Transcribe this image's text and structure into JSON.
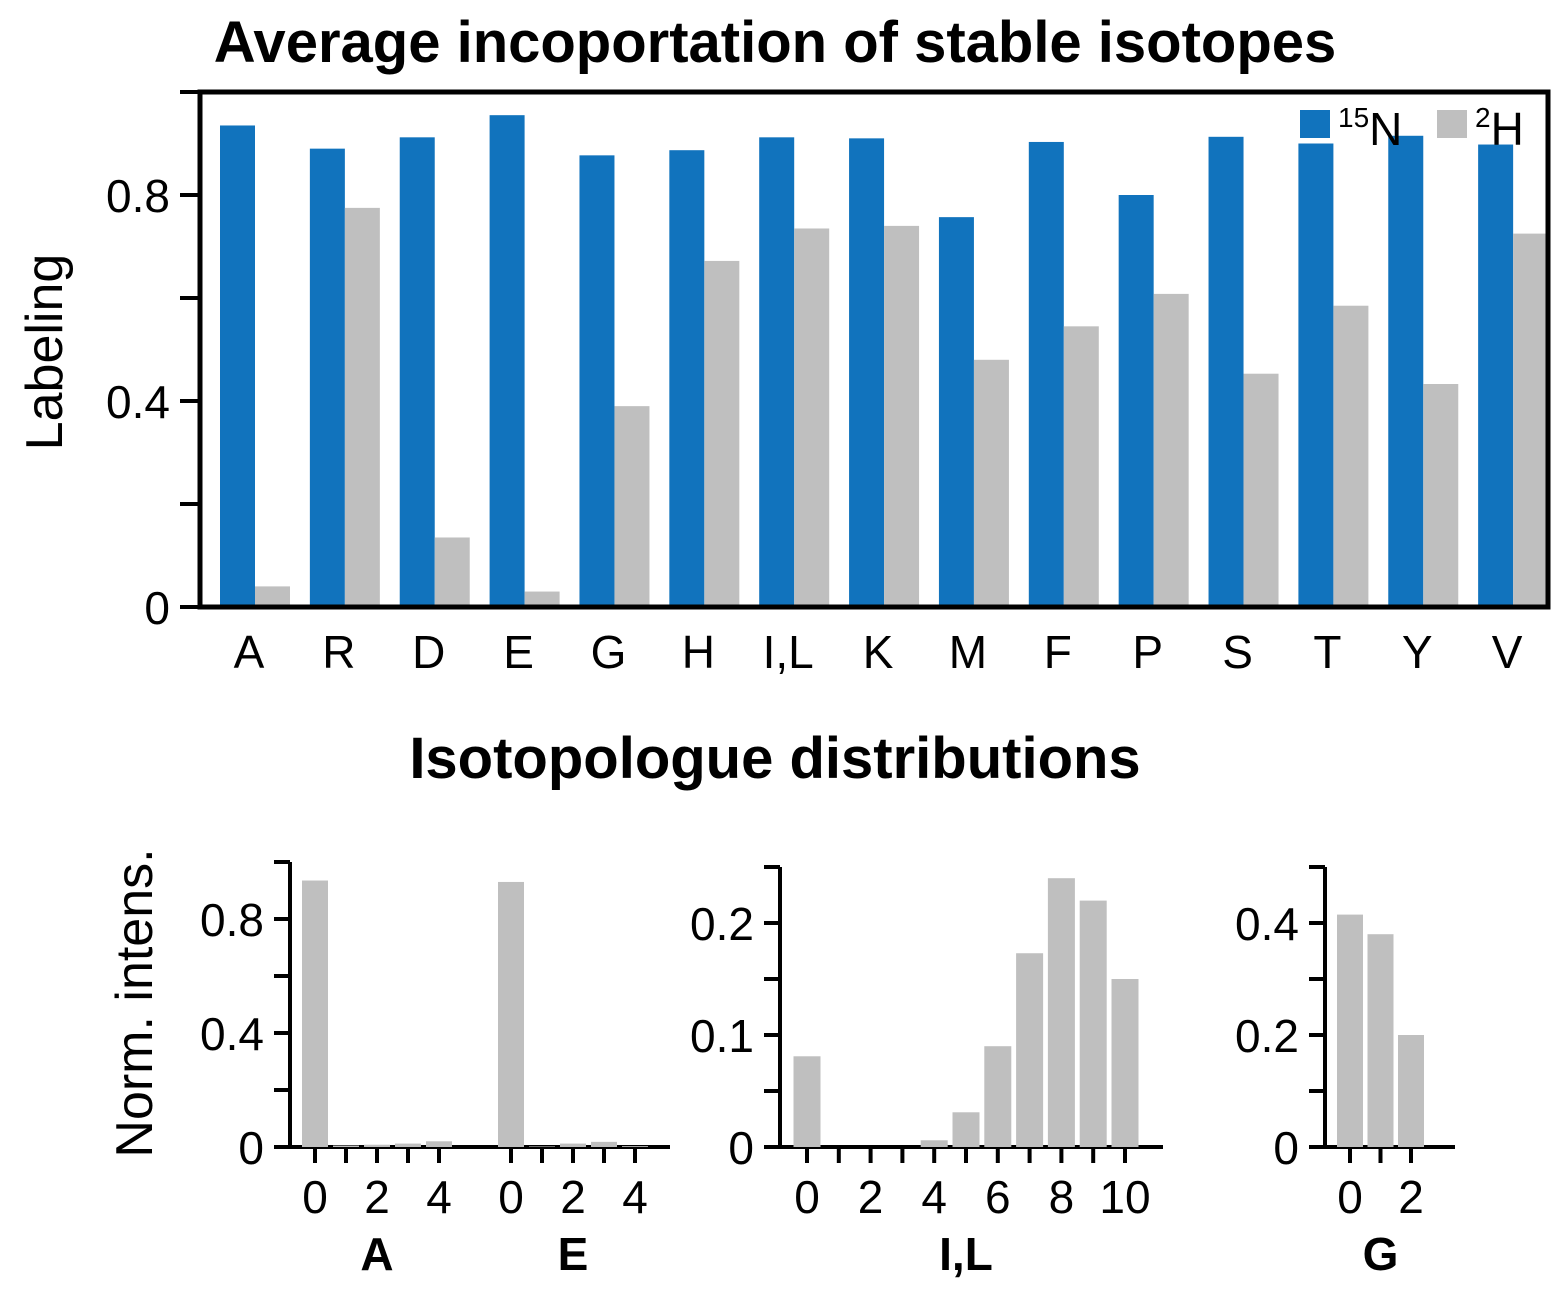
{
  "chart_data": [
    {
      "type": "bar",
      "title": "Average incoportation of stable isotopes",
      "ylabel": "Labeling",
      "ylim": [
        0,
        1.0
      ],
      "yticks": [
        0,
        0.4,
        0.8
      ],
      "yticks_minor": [
        0.2,
        0.6,
        1.0
      ],
      "grid": false,
      "legend": "top-right",
      "categories": [
        "A",
        "R",
        "D",
        "E",
        "G",
        "H",
        "I,L",
        "K",
        "M",
        "F",
        "P",
        "S",
        "T",
        "Y",
        "V"
      ],
      "series": [
        {
          "name": "15N",
          "legend_sup": "15",
          "legend_base": "N",
          "color": "#1173bd",
          "values": [
            0.935,
            0.89,
            0.912,
            0.955,
            0.877,
            0.887,
            0.912,
            0.91,
            0.757,
            0.903,
            0.8,
            0.913,
            0.9,
            0.915,
            0.898
          ]
        },
        {
          "name": "2H",
          "legend_sup": "2",
          "legend_base": "H",
          "color": "#bfbfbf",
          "values": [
            0.04,
            0.775,
            0.135,
            0.03,
            0.39,
            0.672,
            0.735,
            0.74,
            0.48,
            0.545,
            0.608,
            0.453,
            0.585,
            0.433,
            0.725
          ]
        }
      ]
    },
    {
      "type": "bar",
      "title": "Isotopologue distributions",
      "ylabel": "Norm. intens.",
      "ylim": [
        0,
        1.0
      ],
      "yticks": [
        0,
        0.4,
        0.8
      ],
      "groups": [
        {
          "name": "A",
          "x": [
            0,
            1,
            2,
            3,
            4
          ],
          "xticks": [
            0,
            2,
            4
          ],
          "values": [
            0.935,
            0.005,
            0.008,
            0.012,
            0.02
          ]
        },
        {
          "name": "E",
          "x": [
            0,
            1,
            2,
            3,
            4
          ],
          "xticks": [
            0,
            2,
            4
          ],
          "values": [
            0.93,
            0.002,
            0.012,
            0.018,
            0.003
          ]
        }
      ],
      "color": "#bfbfbf"
    },
    {
      "type": "bar",
      "ylim": [
        0,
        0.25
      ],
      "yticks": [
        0,
        0.1,
        0.2
      ],
      "groups": [
        {
          "name": "I,L",
          "x": [
            0,
            1,
            2,
            3,
            4,
            5,
            6,
            7,
            8,
            9,
            10
          ],
          "xticks": [
            0,
            2,
            4,
            6,
            8,
            10
          ],
          "values": [
            0.081,
            0.0,
            0.0,
            0.0,
            0.006,
            0.031,
            0.09,
            0.173,
            0.24,
            0.22,
            0.15
          ]
        }
      ],
      "color": "#bfbfbf"
    },
    {
      "type": "bar",
      "ylim": [
        0,
        0.5
      ],
      "yticks": [
        0,
        0.2,
        0.4
      ],
      "groups": [
        {
          "name": "G",
          "x": [
            0,
            1,
            2
          ],
          "xticks": [
            0,
            2
          ],
          "values": [
            0.415,
            0.38,
            0.2
          ]
        }
      ],
      "color": "#bfbfbf"
    }
  ]
}
